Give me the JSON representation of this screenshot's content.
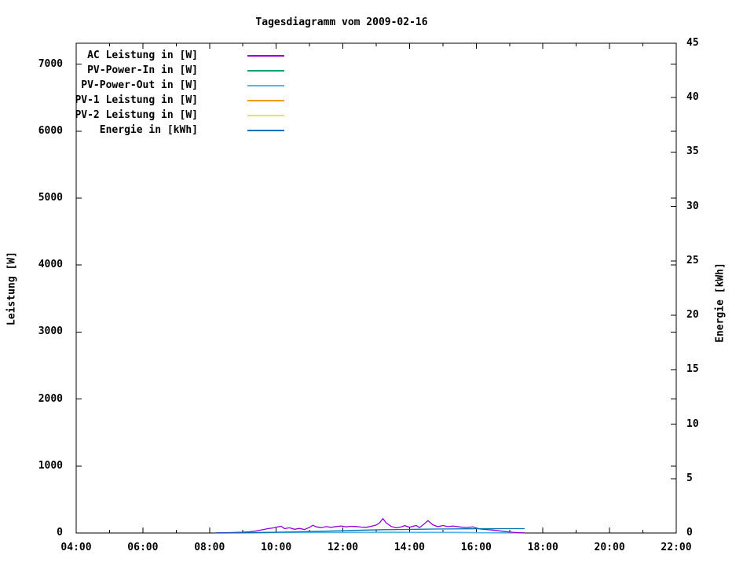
{
  "chart_data": {
    "type": "line",
    "title": "Tagesdiagramm vom 2009-02-16",
    "xlabel": "",
    "ylabel": "Leistung [W]",
    "y2label": "Energie [kWh]",
    "x_unit": "time of day",
    "xlim_hours": [
      4,
      22
    ],
    "x_tick_hours": [
      4,
      6,
      8,
      10,
      12,
      14,
      16,
      18,
      20,
      22
    ],
    "x_tick_labels": [
      "04:00",
      "06:00",
      "08:00",
      "10:00",
      "12:00",
      "14:00",
      "16:00",
      "18:00",
      "20:00",
      "22:00"
    ],
    "x_minor_tick_hours": [
      5,
      7,
      9,
      11,
      13,
      15,
      17,
      19,
      21
    ],
    "ylim": [
      0,
      7312
    ],
    "y_ticks": [
      0,
      1000,
      2000,
      3000,
      4000,
      5000,
      6000,
      7000
    ],
    "y2lim": [
      0,
      45
    ],
    "y2_ticks": [
      0,
      5,
      10,
      15,
      20,
      25,
      30,
      35,
      40,
      45
    ],
    "grid": false,
    "legend_position": "inside top-left, labels right-aligned with line samples",
    "border_color": "#000000",
    "draw_order": [
      3,
      4,
      1,
      2,
      0,
      5
    ],
    "series": [
      {
        "name": "AC Leistung in [W]",
        "color": "#9400d3",
        "axis": "y1",
        "points": [
          [
            8.2,
            2
          ],
          [
            8.4,
            5
          ],
          [
            8.6,
            6
          ],
          [
            8.8,
            8
          ],
          [
            9.0,
            12
          ],
          [
            9.2,
            18
          ],
          [
            9.4,
            30
          ],
          [
            9.6,
            50
          ],
          [
            9.75,
            65
          ],
          [
            9.9,
            75
          ],
          [
            10.05,
            90
          ],
          [
            10.15,
            100
          ],
          [
            10.25,
            65
          ],
          [
            10.4,
            78
          ],
          [
            10.55,
            55
          ],
          [
            10.7,
            68
          ],
          [
            10.85,
            52
          ],
          [
            11.0,
            85
          ],
          [
            11.1,
            115
          ],
          [
            11.2,
            92
          ],
          [
            11.35,
            80
          ],
          [
            11.5,
            95
          ],
          [
            11.65,
            85
          ],
          [
            11.8,
            96
          ],
          [
            11.95,
            105
          ],
          [
            12.1,
            92
          ],
          [
            12.25,
            100
          ],
          [
            12.4,
            96
          ],
          [
            12.55,
            88
          ],
          [
            12.7,
            84
          ],
          [
            12.85,
            100
          ],
          [
            13.0,
            118
          ],
          [
            13.1,
            150
          ],
          [
            13.2,
            215
          ],
          [
            13.3,
            150
          ],
          [
            13.45,
            98
          ],
          [
            13.6,
            78
          ],
          [
            13.75,
            90
          ],
          [
            13.85,
            110
          ],
          [
            14.0,
            85
          ],
          [
            14.1,
            100
          ],
          [
            14.2,
            112
          ],
          [
            14.3,
            80
          ],
          [
            14.45,
            140
          ],
          [
            14.55,
            185
          ],
          [
            14.7,
            120
          ],
          [
            14.85,
            95
          ],
          [
            15.0,
            112
          ],
          [
            15.15,
            95
          ],
          [
            15.3,
            105
          ],
          [
            15.5,
            90
          ],
          [
            15.7,
            82
          ],
          [
            15.9,
            90
          ],
          [
            16.1,
            60
          ],
          [
            16.3,
            52
          ],
          [
            16.5,
            44
          ],
          [
            16.7,
            32
          ],
          [
            16.9,
            20
          ],
          [
            17.1,
            10
          ],
          [
            17.3,
            5
          ],
          [
            17.45,
            2
          ]
        ]
      },
      {
        "name": "PV-Power-In in [W]",
        "color": "#009e73",
        "axis": "y1",
        "points": [
          [
            8.2,
            2
          ],
          [
            9.0,
            4
          ],
          [
            10.0,
            8
          ],
          [
            11.0,
            10
          ],
          [
            12.0,
            10
          ],
          [
            13.0,
            12
          ],
          [
            14.0,
            10
          ],
          [
            15.0,
            10
          ],
          [
            16.0,
            6
          ],
          [
            17.0,
            3
          ],
          [
            17.4,
            1
          ]
        ]
      },
      {
        "name": "PV-Power-Out in [W]",
        "color": "#56b4e9",
        "axis": "y1",
        "points": [
          [
            8.2,
            1
          ],
          [
            9.0,
            3
          ],
          [
            10.0,
            6
          ],
          [
            11.0,
            8
          ],
          [
            12.0,
            8
          ],
          [
            13.0,
            9
          ],
          [
            14.0,
            8
          ],
          [
            15.0,
            8
          ],
          [
            16.0,
            5
          ],
          [
            17.0,
            2
          ],
          [
            17.4,
            1
          ]
        ]
      },
      {
        "name": "PV-1 Leistung in [W]",
        "color": "#e69f00",
        "axis": "y1",
        "points": [
          [
            8.2,
            0
          ],
          [
            10.0,
            1
          ],
          [
            12.0,
            1
          ],
          [
            14.0,
            1
          ],
          [
            16.0,
            1
          ],
          [
            17.4,
            0
          ]
        ]
      },
      {
        "name": "PV-2 Leistung in [W]",
        "color": "#f0e442",
        "axis": "y1",
        "points": [
          [
            8.2,
            0
          ],
          [
            10.0,
            1
          ],
          [
            12.0,
            1
          ],
          [
            14.0,
            1
          ],
          [
            16.0,
            1
          ],
          [
            17.4,
            0
          ]
        ]
      },
      {
        "name": "Energie in [kWh]",
        "color": "#0072b2",
        "axis": "y2",
        "points": [
          [
            8.2,
            0
          ],
          [
            8.7,
            0.01
          ],
          [
            9.2,
            0.03
          ],
          [
            9.7,
            0.05
          ],
          [
            10.2,
            0.08
          ],
          [
            10.7,
            0.11
          ],
          [
            11.2,
            0.15
          ],
          [
            11.7,
            0.19
          ],
          [
            12.2,
            0.23
          ],
          [
            12.7,
            0.27
          ],
          [
            13.2,
            0.3
          ],
          [
            13.7,
            0.32
          ],
          [
            14.2,
            0.34
          ],
          [
            14.7,
            0.36
          ],
          [
            15.2,
            0.37
          ],
          [
            15.7,
            0.38
          ],
          [
            16.2,
            0.39
          ],
          [
            16.7,
            0.4
          ],
          [
            17.2,
            0.4
          ],
          [
            17.45,
            0.4
          ]
        ]
      }
    ]
  }
}
